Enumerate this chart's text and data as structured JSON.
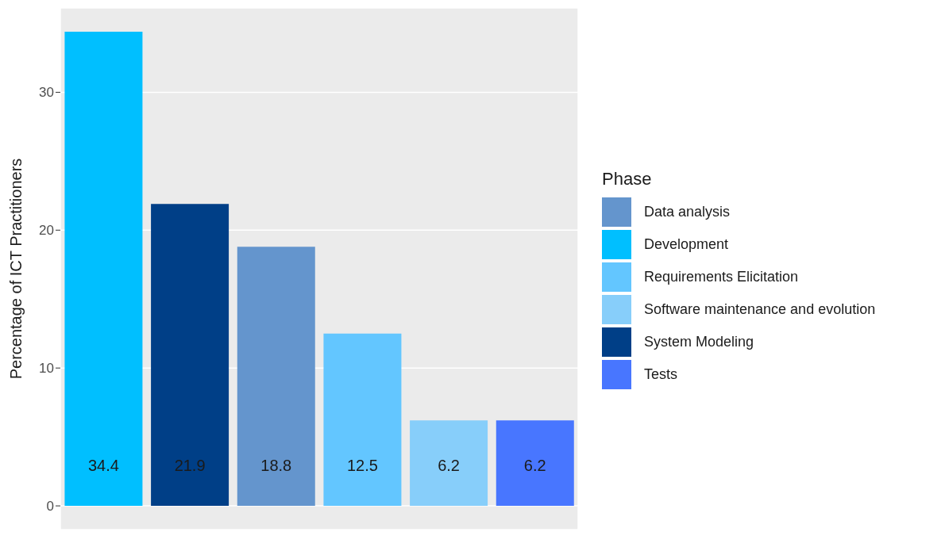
{
  "chart_data": {
    "type": "bar",
    "ylabel": "Percentage of ICT Practitioners",
    "legend_title": "Phase",
    "categories": [
      null,
      null,
      null,
      null,
      null,
      null
    ],
    "stacked": true,
    "series": [
      {
        "name": "Data analysis",
        "color": "#6495cd",
        "values": [
          null,
          null,
          18.8,
          null,
          null,
          null
        ]
      },
      {
        "name": "Development",
        "color": "#00bfff",
        "values": [
          34.4,
          null,
          null,
          null,
          null,
          null
        ]
      },
      {
        "name": "Requirements Elicitation",
        "color": "#63c6ff",
        "values": [
          null,
          null,
          null,
          12.5,
          null,
          null
        ]
      },
      {
        "name": "Software maintenance and evolution",
        "color": "#87cefa",
        "values": [
          null,
          null,
          null,
          null,
          6.2,
          null
        ]
      },
      {
        "name": "System Modeling",
        "color": "#003f87",
        "values": [
          null,
          21.9,
          null,
          null,
          null,
          null
        ]
      },
      {
        "name": "Tests",
        "color": "#4876ff",
        "values": [
          null,
          null,
          null,
          null,
          null,
          6.2
        ]
      }
    ],
    "ylim": [
      -1.72,
      36.12
    ],
    "yticks": [
      0,
      10,
      20,
      30
    ],
    "grid": true,
    "legend": "right",
    "tick_labels": "y",
    "data_labels": true
  }
}
